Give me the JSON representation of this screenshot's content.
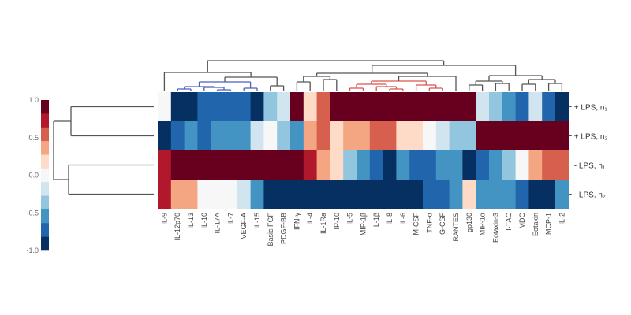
{
  "chart_data": {
    "type": "heatmap",
    "title": "",
    "columns": [
      "IL-9",
      "IL-12p70",
      "IL-13",
      "IL-10",
      "IL-17A",
      "IL-7",
      "VEGF-A",
      "IL-15",
      "Basic FGF",
      "PDGF-BB",
      "IFN-γ",
      "IL-4",
      "IL-1Ra",
      "IP-10",
      "IL-5",
      "MIP-1β",
      "IL-1β",
      "IL-8",
      "IL-6",
      "M-CSF",
      "TNF-α",
      "G-CSF",
      "RANTES",
      "gp130",
      "MIP-1α",
      "Eotaxin-3",
      "I-TAC",
      "MDC",
      "Eotaxin",
      "MCP-1",
      "IL-2"
    ],
    "rows": [
      "+ LPS, n₁",
      "+ LPS, n₂",
      "- LPS, n₁",
      "- LPS, n₂"
    ],
    "values": [
      [
        0,
        -1,
        -1,
        -0.8,
        -0.8,
        -0.8,
        -0.8,
        -1,
        -0.4,
        -0.2,
        1,
        0.2,
        0.6,
        1,
        1,
        1,
        1,
        1,
        1,
        1,
        1,
        1,
        1,
        1,
        -0.2,
        -0.4,
        -0.6,
        -0.8,
        -0.2,
        -0.8,
        -1
      ],
      [
        -1,
        -0.8,
        -0.6,
        -0.8,
        -0.6,
        -0.6,
        -0.6,
        -0.2,
        0,
        -0.4,
        -0.6,
        0.4,
        0.6,
        0.2,
        0.4,
        0.4,
        0.6,
        0.6,
        0.2,
        0.2,
        0,
        -0.2,
        -0.4,
        -0.4,
        1,
        1,
        1,
        1,
        1,
        1,
        1
      ],
      [
        0.8,
        1,
        1,
        1,
        1,
        1,
        1,
        1,
        1,
        1,
        1,
        0.8,
        0.4,
        0.2,
        -0.4,
        -0.6,
        -0.8,
        -1,
        -0.6,
        -0.8,
        -0.8,
        -0.6,
        -0.6,
        -1,
        -0.8,
        -0.6,
        -0.4,
        0,
        0.4,
        0.6,
        0.6
      ],
      [
        0.8,
        0.4,
        0.4,
        0,
        0,
        0,
        -0.2,
        -0.6,
        -1,
        -1,
        -1,
        -1,
        -1,
        -1,
        -1,
        -1,
        -1,
        -1,
        -1,
        -1,
        -0.8,
        -0.8,
        -0.6,
        0.2,
        -0.6,
        -0.6,
        -0.6,
        -0.8,
        -1,
        -1,
        -0.6
      ]
    ],
    "colorbar": {
      "range": [
        -1,
        1
      ],
      "ticks": [
        "1.0",
        "0.5",
        "0.0",
        "-0.5",
        "-1.0"
      ],
      "colormap": [
        "#053061",
        "#2166ac",
        "#4393c3",
        "#92c5de",
        "#d1e5f0",
        "#f7f7f7",
        "#fddbc7",
        "#f4a582",
        "#d6604d",
        "#b2182b",
        "#67001f"
      ],
      "placement": "left"
    },
    "dendrograms": {
      "rows": true,
      "columns": true
    },
    "cluster_colors": {
      "blue": "#4a5fc0",
      "red": "#d9534f",
      "default": "#555555"
    }
  }
}
